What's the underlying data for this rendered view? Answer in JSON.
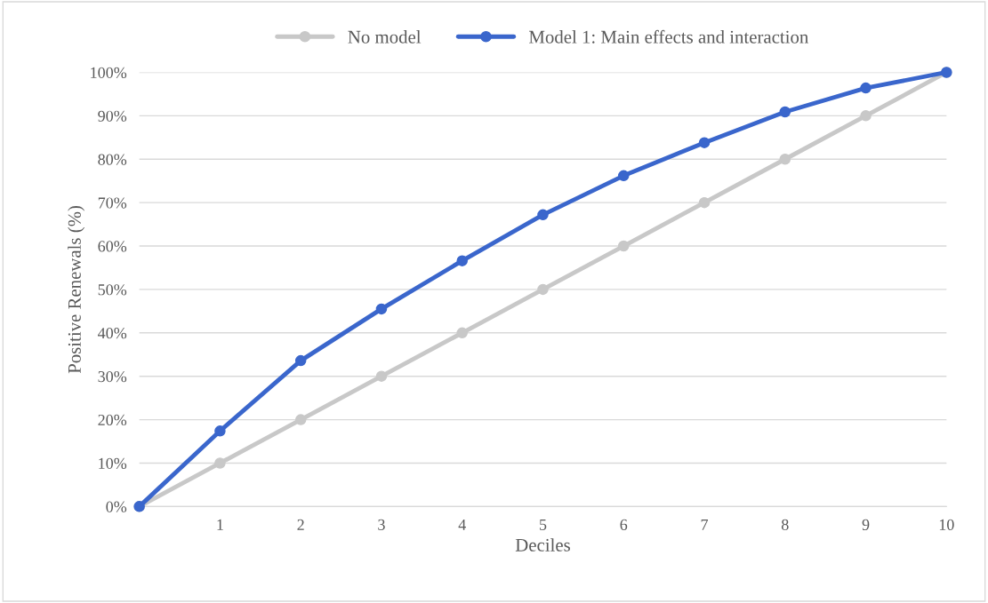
{
  "chart_data": {
    "type": "line",
    "xlabel": "Deciles",
    "ylabel": "Positive Renewals (%)",
    "x": [
      0,
      1,
      2,
      3,
      4,
      5,
      6,
      7,
      8,
      9,
      10
    ],
    "series": [
      {
        "name": "No model",
        "color": "#c8c8c8",
        "values": [
          0,
          10,
          20,
          30,
          40,
          50,
          60,
          70,
          80,
          90,
          100
        ]
      },
      {
        "name": "Model 1: Main effects and interaction",
        "color": "#3a66cc",
        "values": [
          0,
          17.4,
          33.6,
          45.5,
          56.6,
          67.2,
          76.2,
          83.8,
          90.9,
          96.4,
          100
        ]
      }
    ],
    "xlim": [
      0,
      10
    ],
    "xticks": [
      1,
      2,
      3,
      4,
      5,
      6,
      7,
      8,
      9,
      10
    ],
    "ylim": [
      0,
      100
    ],
    "yticks": [
      {
        "value": 0,
        "label": "0%"
      },
      {
        "value": 10,
        "label": "10%"
      },
      {
        "value": 20,
        "label": "20%"
      },
      {
        "value": 30,
        "label": "30%"
      },
      {
        "value": 40,
        "label": "40%"
      },
      {
        "value": 50,
        "label": "50%"
      },
      {
        "value": 60,
        "label": "60%"
      },
      {
        "value": 70,
        "label": "70%"
      },
      {
        "value": 80,
        "label": "80%"
      },
      {
        "value": 90,
        "label": "90%"
      },
      {
        "value": 100,
        "label": "100%"
      }
    ],
    "grid": "y",
    "legend": "top",
    "marker": "circle",
    "line_style": "solid"
  }
}
